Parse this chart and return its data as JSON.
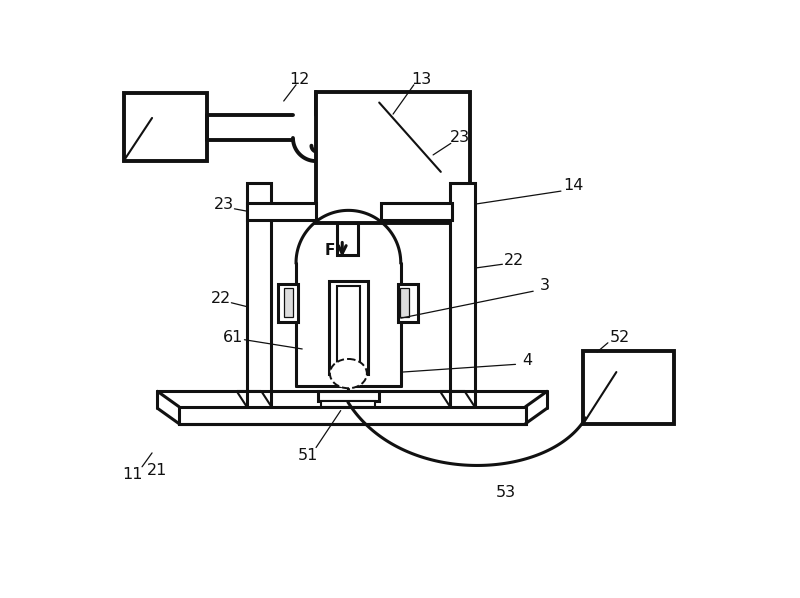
{
  "bg_color": "#ffffff",
  "line_color": "#111111",
  "fig_width": 8.0,
  "fig_height": 5.98,
  "dpi": 100
}
